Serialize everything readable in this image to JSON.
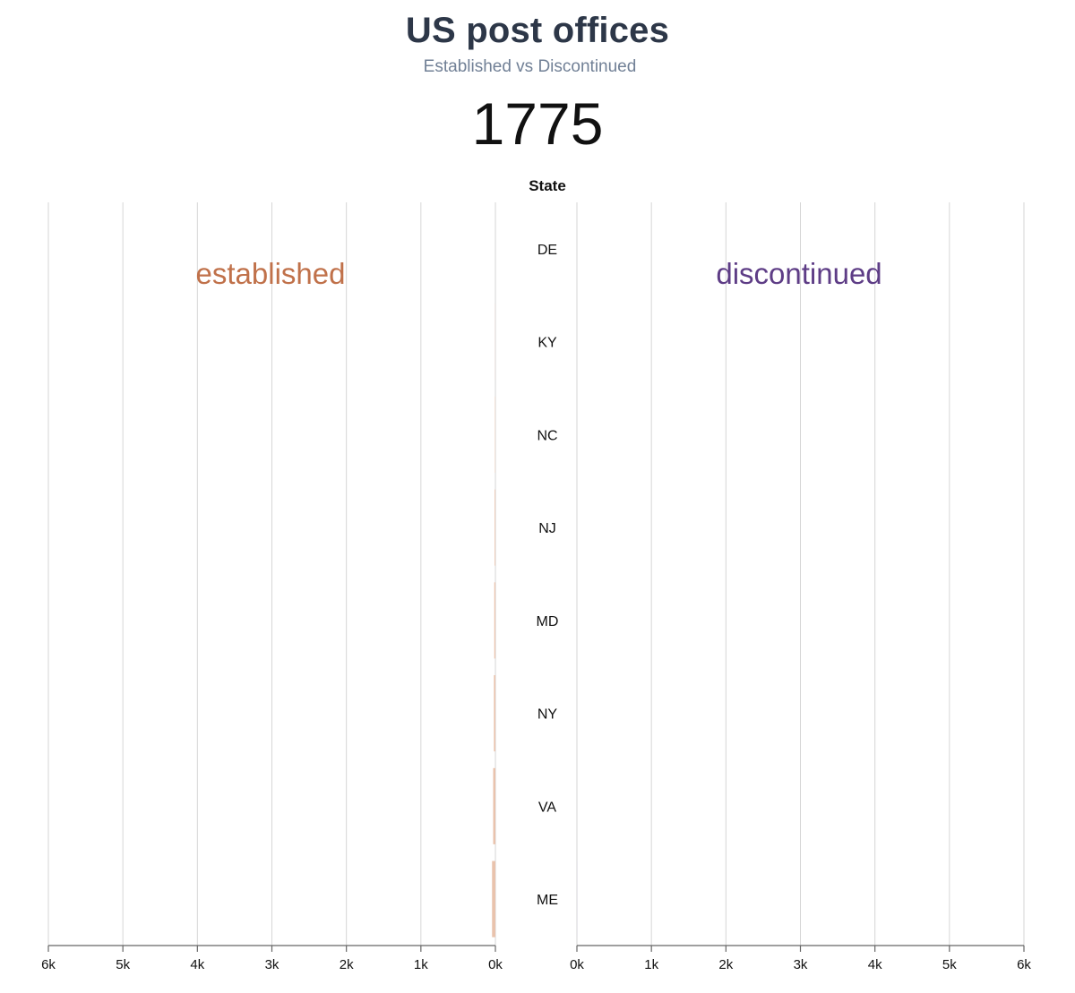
{
  "header": {
    "title": "US post offices",
    "subtitle": "Established vs Discontinued",
    "year": "1775"
  },
  "colors": {
    "established_label": "#c0714a",
    "established_bar": "#e9c3ad",
    "discontinued_label": "#5e3d86",
    "discontinued_bar": "#cfc7dc",
    "grid": "#d6d6d6",
    "axis": "#666666"
  },
  "chart_data": {
    "type": "bar",
    "orientation": "horizontal-butterfly",
    "category_axis_title": "State",
    "categories": [
      "DE",
      "KY",
      "NC",
      "NJ",
      "MD",
      "NY",
      "VA",
      "ME"
    ],
    "series": [
      {
        "name": "established",
        "values": [
          0,
          2,
          5,
          10,
          15,
          20,
          30,
          45
        ]
      },
      {
        "name": "discontinued",
        "values": [
          0,
          0,
          0,
          0,
          0,
          0,
          0,
          2
        ]
      }
    ],
    "xlim": [
      0,
      6000
    ],
    "tick_values": [
      0,
      1000,
      2000,
      3000,
      4000,
      5000,
      6000
    ],
    "tick_labels": [
      "0k",
      "1k",
      "2k",
      "3k",
      "4k",
      "5k",
      "6k"
    ],
    "grid": true
  }
}
